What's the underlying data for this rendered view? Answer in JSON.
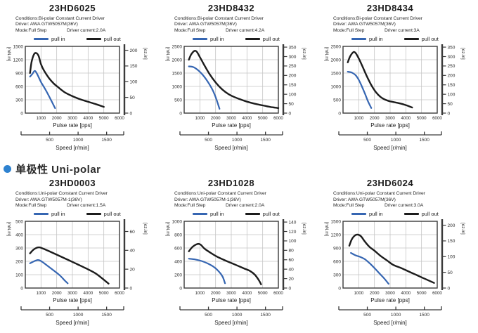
{
  "page": {
    "background": "#ffffff"
  },
  "section_header": {
    "text": "单极性 Uni-polar",
    "bullet_color": "#2e82d0"
  },
  "colors": {
    "pull_in": "#3666b2",
    "pull_out": "#1c1c1c",
    "grid": "#c4c4c4",
    "axis": "#3a3a3a",
    "text": "#2a2a2a"
  },
  "oz_in_to_mnm": 7.0616,
  "chart_data": [
    {
      "type": "line",
      "title": "23HD6025",
      "conditions": "Conditions:Bi-polar Constant Current Driver",
      "driver": "Driver: AWA GTW5057M(36V)",
      "mode": "Mode:Full Step",
      "driver_current": "Driver current:2.0A",
      "xlabel": "Pulse rate [pps]",
      "speed_label": "Speed [r/min]",
      "left_unit": "[mN.m]",
      "right_unit": "[oz.in]",
      "x_max": 6000,
      "x_ticks": [
        1000,
        2000,
        3000,
        4000,
        5000,
        6000
      ],
      "left_max": 1500,
      "left_ticks": [
        0,
        300,
        600,
        900,
        1200,
        1500
      ],
      "right_ticks": [
        0,
        50,
        100,
        150,
        200
      ],
      "speed_max": 1800,
      "speed_ticks": [
        500,
        1000,
        1500
      ],
      "series": [
        {
          "name": "pull in",
          "color_key": "pull_in",
          "points": [
            [
              300,
              820
            ],
            [
              450,
              880
            ],
            [
              600,
              950
            ],
            [
              750,
              880
            ],
            [
              1000,
              700
            ],
            [
              1300,
              520
            ],
            [
              1600,
              320
            ],
            [
              1900,
              110
            ]
          ]
        },
        {
          "name": "pull out",
          "color_key": "pull_out",
          "points": [
            [
              300,
              900
            ],
            [
              400,
              1150
            ],
            [
              550,
              1320
            ],
            [
              700,
              1350
            ],
            [
              850,
              1280
            ],
            [
              1000,
              1100
            ],
            [
              1200,
              950
            ],
            [
              1500,
              790
            ],
            [
              1800,
              670
            ],
            [
              2100,
              580
            ],
            [
              2500,
              470
            ],
            [
              3000,
              380
            ],
            [
              3500,
              310
            ],
            [
              4000,
              255
            ],
            [
              4500,
              200
            ],
            [
              5000,
              140
            ]
          ]
        }
      ]
    },
    {
      "type": "line",
      "title": "23HD8432",
      "conditions": "Conditions:Bi-polar Constant Current Driver",
      "driver": "Driver: AWA GTW5057M(36V)",
      "mode": "Mode:Full Step",
      "driver_current": "Driver current:4.2A",
      "xlabel": "Pulse rate [pps]",
      "speed_label": "Speed [r/min]",
      "left_unit": "[mN.m]",
      "right_unit": "[oz.in]",
      "x_max": 6000,
      "x_ticks": [
        1000,
        2000,
        3000,
        4000,
        5000,
        6000
      ],
      "left_max": 2500,
      "left_ticks": [
        0,
        500,
        1000,
        1500,
        2000,
        2500
      ],
      "right_ticks": [
        0,
        50,
        100,
        150,
        200,
        250,
        300,
        350
      ],
      "speed_max": 1800,
      "speed_ticks": [
        500,
        1000,
        1500
      ],
      "series": [
        {
          "name": "pull in",
          "color_key": "pull_in",
          "points": [
            [
              300,
              1750
            ],
            [
              600,
              1720
            ],
            [
              900,
              1600
            ],
            [
              1200,
              1420
            ],
            [
              1500,
              1180
            ],
            [
              1800,
              880
            ],
            [
              2000,
              600
            ],
            [
              2150,
              350
            ],
            [
              2250,
              160
            ]
          ]
        },
        {
          "name": "pull out",
          "color_key": "pull_out",
          "points": [
            [
              300,
              2000
            ],
            [
              450,
              2200
            ],
            [
              650,
              2330
            ],
            [
              800,
              2300
            ],
            [
              1000,
              2100
            ],
            [
              1300,
              1780
            ],
            [
              1600,
              1480
            ],
            [
              2000,
              1150
            ],
            [
              2400,
              900
            ],
            [
              2800,
              720
            ],
            [
              3200,
              600
            ],
            [
              3600,
              510
            ],
            [
              4000,
              430
            ],
            [
              4500,
              350
            ],
            [
              5000,
              290
            ],
            [
              5500,
              230
            ],
            [
              6000,
              190
            ]
          ]
        }
      ]
    },
    {
      "type": "line",
      "title": "23HD8434",
      "conditions": "Conditions:Bi-polar Constant Current Driver",
      "driver": "Driver: AWA GTW5057M(36V)",
      "mode": "Mode:Full Step",
      "driver_current": "Driver current:3A",
      "xlabel": "Pulse rate [pps]",
      "speed_label": "Speed [r/min]",
      "left_unit": "[mN.m]",
      "right_unit": "[oz.in]",
      "x_max": 6000,
      "x_ticks": [
        1000,
        2000,
        3000,
        4000,
        5000,
        6000
      ],
      "left_max": 2500,
      "left_ticks": [
        0,
        500,
        1000,
        1500,
        2000,
        2500
      ],
      "right_ticks": [
        0,
        50,
        100,
        150,
        200,
        250,
        300,
        350
      ],
      "speed_max": 1800,
      "speed_ticks": [
        500,
        1000,
        1500
      ],
      "series": [
        {
          "name": "pull in",
          "color_key": "pull_in",
          "points": [
            [
              300,
              1550
            ],
            [
              550,
              1520
            ],
            [
              800,
              1420
            ],
            [
              1000,
              1250
            ],
            [
              1200,
              1000
            ],
            [
              1400,
              720
            ],
            [
              1600,
              430
            ],
            [
              1800,
              190
            ]
          ]
        },
        {
          "name": "pull out",
          "color_key": "pull_out",
          "points": [
            [
              300,
              1900
            ],
            [
              450,
              2120
            ],
            [
              650,
              2280
            ],
            [
              800,
              2250
            ],
            [
              1000,
              2050
            ],
            [
              1200,
              1800
            ],
            [
              1500,
              1400
            ],
            [
              1800,
              1050
            ],
            [
              2100,
              780
            ],
            [
              2400,
              600
            ],
            [
              2700,
              500
            ],
            [
              3000,
              440
            ],
            [
              3500,
              380
            ],
            [
              4000,
              300
            ],
            [
              4400,
              210
            ]
          ]
        }
      ]
    },
    {
      "type": "line",
      "title": "23HD0003",
      "conditions": "Conditions:Uni-polar Constant Current Driver",
      "driver": "Driver: AWA GTW5057M-1(36V)",
      "mode": "Mode:Full Step",
      "driver_current": "Driver current:1.5A",
      "xlabel": "Pulse rate [pps]",
      "speed_label": "Speed [r/min]",
      "left_unit": "[mN.m]",
      "right_unit": "[oz.in]",
      "x_max": 6000,
      "x_ticks": [
        1000,
        2000,
        3000,
        4000,
        5000,
        6000
      ],
      "left_max": 500,
      "left_ticks": [
        0,
        100,
        200,
        300,
        400,
        500
      ],
      "right_ticks": [
        0,
        20,
        40,
        60
      ],
      "speed_max": 1800,
      "speed_ticks": [
        500,
        1000,
        1500
      ],
      "series": [
        {
          "name": "pull in",
          "color_key": "pull_in",
          "points": [
            [
              300,
              185
            ],
            [
              550,
              200
            ],
            [
              800,
              210
            ],
            [
              1000,
              202
            ],
            [
              1400,
              168
            ],
            [
              1800,
              132
            ],
            [
              2200,
              95
            ],
            [
              2500,
              58
            ],
            [
              2700,
              35
            ]
          ]
        },
        {
          "name": "pull out",
          "color_key": "pull_out",
          "points": [
            [
              300,
              260
            ],
            [
              550,
              290
            ],
            [
              850,
              305
            ],
            [
              1100,
              297
            ],
            [
              1500,
              277
            ],
            [
              2000,
              250
            ],
            [
              2500,
              223
            ],
            [
              3000,
              196
            ],
            [
              3500,
              168
            ],
            [
              4000,
              140
            ],
            [
              4500,
              108
            ],
            [
              5000,
              62
            ],
            [
              5300,
              33
            ]
          ]
        }
      ]
    },
    {
      "type": "line",
      "title": "23HD1028",
      "conditions": "Conditions:Uni-polar Constant Current Driver",
      "driver": "Driver: AWA GTW5057M-1(36V)",
      "mode": "Mode:Full Step",
      "driver_current": "Driver current:2.0A",
      "xlabel": "Pulse rate [pps]",
      "speed_label": "Speed [r/min]",
      "left_unit": "[mN.m]",
      "right_unit": "[oz.in]",
      "x_max": 6000,
      "x_ticks": [
        1000,
        2000,
        3000,
        4000,
        5000,
        6000
      ],
      "left_max": 1000,
      "left_ticks": [
        0,
        200,
        400,
        600,
        800,
        1000
      ],
      "right_ticks": [
        0,
        20,
        40,
        60,
        80,
        100,
        120,
        140
      ],
      "speed_max": 1800,
      "speed_ticks": [
        500,
        1000,
        1500
      ],
      "series": [
        {
          "name": "pull in",
          "color_key": "pull_in",
          "points": [
            [
              300,
              440
            ],
            [
              700,
              428
            ],
            [
              1100,
              405
            ],
            [
              1500,
              368
            ],
            [
              1900,
              315
            ],
            [
              2200,
              250
            ],
            [
              2450,
              170
            ],
            [
              2600,
              72
            ]
          ]
        },
        {
          "name": "pull out",
          "color_key": "pull_out",
          "points": [
            [
              300,
              550
            ],
            [
              550,
              620
            ],
            [
              850,
              660
            ],
            [
              1050,
              650
            ],
            [
              1300,
              590
            ],
            [
              1700,
              525
            ],
            [
              2100,
              470
            ],
            [
              2500,
              425
            ],
            [
              2800,
              395
            ],
            [
              3300,
              345
            ],
            [
              3800,
              295
            ],
            [
              4200,
              255
            ],
            [
              4500,
              200
            ],
            [
              4750,
              120
            ],
            [
              4900,
              55
            ]
          ]
        }
      ]
    },
    {
      "type": "line",
      "title": "23HD6024",
      "conditions": "Conditions:Uni-polar Constant Current Driver",
      "driver": "Driver: AWA GTW5057M(36V)",
      "mode": "Mode:Full Step",
      "driver_current": "Driver current:3.0A",
      "xlabel": "Pulse rate [pps]",
      "speed_label": "Speed [r/min]",
      "left_unit": "[mN.m]",
      "right_unit": "[oz.in]",
      "x_max": 6000,
      "x_ticks": [
        1000,
        2000,
        3000,
        4000,
        5000,
        6000
      ],
      "left_max": 1500,
      "left_ticks": [
        0,
        300,
        600,
        900,
        1200,
        1500
      ],
      "right_ticks": [
        0,
        50,
        100,
        150,
        200
      ],
      "speed_max": 1800,
      "speed_ticks": [
        500,
        1000,
        1500
      ],
      "series": [
        {
          "name": "pull in",
          "color_key": "pull_in",
          "points": [
            [
              500,
              790
            ],
            [
              800,
              735
            ],
            [
              1100,
              700
            ],
            [
              1400,
              645
            ],
            [
              1700,
              555
            ],
            [
              2000,
              450
            ],
            [
              2300,
              335
            ],
            [
              2600,
              225
            ],
            [
              2900,
              95
            ]
          ]
        },
        {
          "name": "pull out",
          "color_key": "pull_out",
          "points": [
            [
              400,
              950
            ],
            [
              550,
              1090
            ],
            [
              750,
              1180
            ],
            [
              950,
              1200
            ],
            [
              1150,
              1160
            ],
            [
              1400,
              1040
            ],
            [
              1700,
              920
            ],
            [
              2000,
              840
            ],
            [
              2400,
              720
            ],
            [
              2800,
              620
            ],
            [
              3200,
              520
            ],
            [
              3700,
              450
            ],
            [
              4200,
              370
            ],
            [
              4700,
              290
            ],
            [
              5200,
              210
            ],
            [
              5800,
              115
            ]
          ]
        }
      ]
    }
  ]
}
